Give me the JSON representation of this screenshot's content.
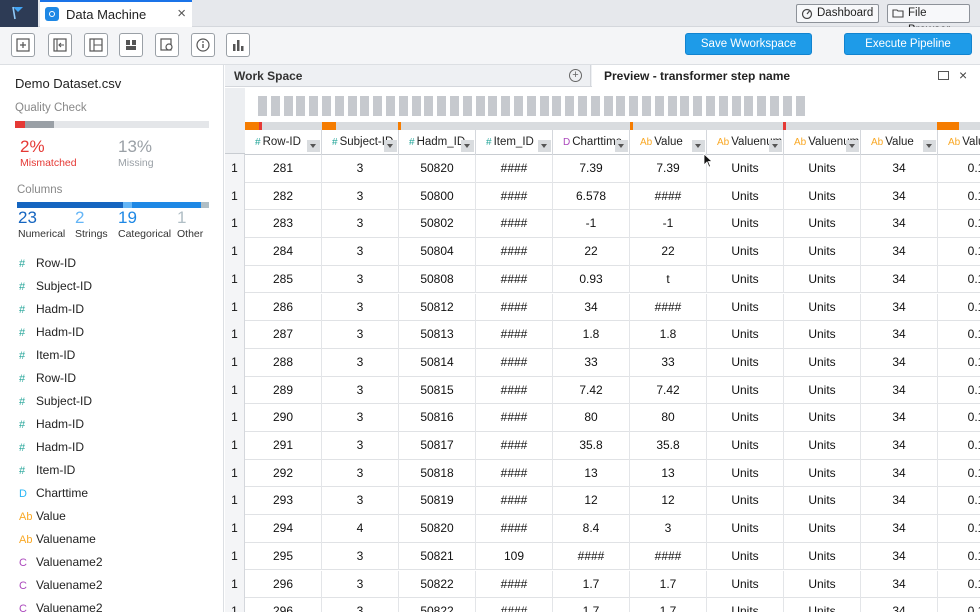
{
  "app": {
    "tab_title": "Data Machine",
    "tab_close": "×",
    "dashboard_label": "Dashboard",
    "file_browser_label": "File Browser",
    "save_label": "Save Wworkspace",
    "execute_label": "Execute Pipeline"
  },
  "toolbar_icons": [
    "add-box-icon",
    "import-icon",
    "layout-icon",
    "blocks-icon",
    "dataset-view-icon",
    "info-icon",
    "chart-icon"
  ],
  "sidebar": {
    "dataset_name": "Demo Dataset.csv",
    "quality_title": "Quality Check",
    "mismatched_value": "2%",
    "mismatched_label": "Mismatched",
    "missing_value": "13%",
    "missing_label": "Missing",
    "columns_title": "Columns",
    "stats": [
      {
        "value": "23",
        "label": "Numerical",
        "color": "#1565c0"
      },
      {
        "value": "2",
        "label": "Strings",
        "color": "#64b5f6"
      },
      {
        "value": "19",
        "label": "Categorical",
        "color": "#1e88e5"
      },
      {
        "value": "1",
        "label": "Other",
        "color": "#b0bec5"
      }
    ],
    "columns": [
      {
        "type": "#",
        "name": "Row-ID",
        "color": "#26a69a"
      },
      {
        "type": "#",
        "name": "Subject-ID",
        "color": "#26a69a"
      },
      {
        "type": "#",
        "name": "Hadm-ID",
        "color": "#26a69a"
      },
      {
        "type": "#",
        "name": "Hadm-ID",
        "color": "#26a69a"
      },
      {
        "type": "#",
        "name": "Item-ID",
        "color": "#26a69a"
      },
      {
        "type": "#",
        "name": "Row-ID",
        "color": "#26a69a"
      },
      {
        "type": "#",
        "name": "Subject-ID",
        "color": "#26a69a"
      },
      {
        "type": "#",
        "name": "Hadm-ID",
        "color": "#26a69a"
      },
      {
        "type": "#",
        "name": "Hadm-ID",
        "color": "#26a69a"
      },
      {
        "type": "#",
        "name": "Item-ID",
        "color": "#26a69a"
      },
      {
        "type": "D",
        "name": "Charttime",
        "color": "#29b6f6"
      },
      {
        "type": "Ab",
        "name": "Value",
        "color": "#f9a825"
      },
      {
        "type": "Ab",
        "name": "Valuename",
        "color": "#f9a825"
      },
      {
        "type": "C",
        "name": "Valuename2",
        "color": "#ab47bc"
      },
      {
        "type": "C",
        "name": "Valuename2",
        "color": "#ab47bc"
      },
      {
        "type": "C",
        "name": "Valuename2",
        "color": "#ab47bc"
      }
    ]
  },
  "workspace_tab": {
    "label": "Work Space",
    "add": "+"
  },
  "preview_tab": {
    "label": "Preview - transformer step name",
    "close": "×"
  },
  "table": {
    "columns": [
      {
        "type": "#",
        "name": "Row-ID",
        "type_color": "#26a69a"
      },
      {
        "type": "#",
        "name": "Subject-ID",
        "type_color": "#26a69a"
      },
      {
        "type": "#",
        "name": "Hadm_ID",
        "type_color": "#26a69a"
      },
      {
        "type": "#",
        "name": "Item_ID",
        "type_color": "#26a69a"
      },
      {
        "type": "D",
        "name": "Charttime",
        "type_color": "#ab47bc"
      },
      {
        "type": "Ab",
        "name": "Value",
        "type_color": "#f9a825"
      },
      {
        "type": "Ab",
        "name": "Valuenum",
        "type_color": "#f9a825"
      },
      {
        "type": "Ab",
        "name": "Valuenum",
        "type_color": "#f9a825"
      },
      {
        "type": "Ab",
        "name": "Value",
        "type_color": "#f9a825"
      },
      {
        "type": "Ab",
        "name": "Valu",
        "type_color": "#f9a825"
      }
    ],
    "rows": [
      {
        "n": "1",
        "cells": [
          "281",
          "3",
          "50820",
          "####",
          "7.39",
          "7.39",
          "Units",
          "Units",
          "34",
          "0.1"
        ]
      },
      {
        "n": "1",
        "cells": [
          "282",
          "3",
          "50800",
          "####",
          "6.578",
          "####",
          "Units",
          "Units",
          "34",
          "0.1"
        ]
      },
      {
        "n": "1",
        "cells": [
          "283",
          "3",
          "50802",
          "####",
          "-1",
          "-1",
          "Units",
          "Units",
          "34",
          "0.1"
        ]
      },
      {
        "n": "1",
        "cells": [
          "284",
          "3",
          "50804",
          "####",
          "22",
          "22",
          "Units",
          "Units",
          "34",
          "0.1"
        ]
      },
      {
        "n": "1",
        "cells": [
          "285",
          "3",
          "50808",
          "####",
          "0.93",
          "t",
          "Units",
          "Units",
          "34",
          "0.1"
        ]
      },
      {
        "n": "1",
        "cells": [
          "286",
          "3",
          "50812",
          "####",
          "34",
          "####",
          "Units",
          "Units",
          "34",
          "0.1"
        ]
      },
      {
        "n": "1",
        "cells": [
          "287",
          "3",
          "50813",
          "####",
          "1.8",
          "1.8",
          "Units",
          "Units",
          "34",
          "0.1"
        ]
      },
      {
        "n": "1",
        "cells": [
          "288",
          "3",
          "50814",
          "####",
          "33",
          "33",
          "Units",
          "Units",
          "34",
          "0.1"
        ]
      },
      {
        "n": "1",
        "cells": [
          "289",
          "3",
          "50815",
          "####",
          "7.42",
          "7.42",
          "Units",
          "Units",
          "34",
          "0.1"
        ]
      },
      {
        "n": "1",
        "cells": [
          "290",
          "3",
          "50816",
          "####",
          "80",
          "80",
          "Units",
          "Units",
          "34",
          "0.1"
        ]
      },
      {
        "n": "1",
        "cells": [
          "291",
          "3",
          "50817",
          "####",
          "35.8",
          "35.8",
          "Units",
          "Units",
          "34",
          "0.1"
        ]
      },
      {
        "n": "1",
        "cells": [
          "292",
          "3",
          "50818",
          "####",
          "13",
          "13",
          "Units",
          "Units",
          "34",
          "0.1"
        ]
      },
      {
        "n": "1",
        "cells": [
          "293",
          "3",
          "50819",
          "####",
          "12",
          "12",
          "Units",
          "Units",
          "34",
          "0.1"
        ]
      },
      {
        "n": "1",
        "cells": [
          "294",
          "4",
          "50820",
          "####",
          "8.4",
          "3",
          "Units",
          "Units",
          "34",
          "0.1"
        ]
      },
      {
        "n": "1",
        "cells": [
          "295",
          "3",
          "50821",
          "109",
          "####",
          "####",
          "Units",
          "Units",
          "34",
          "0.1"
        ]
      },
      {
        "n": "1",
        "cells": [
          "296",
          "3",
          "50822",
          "####",
          "1.7",
          "1.7",
          "Units",
          "Units",
          "34",
          "0.1"
        ]
      },
      {
        "n": "1",
        "cells": [
          "296",
          "3",
          "50822",
          "####",
          "1.7",
          "1.7",
          "Units",
          "Units",
          "34",
          "0.1"
        ]
      }
    ]
  },
  "quality_strip_colors": [
    "#f57c00",
    "#e53935",
    "#d9dcdf"
  ]
}
